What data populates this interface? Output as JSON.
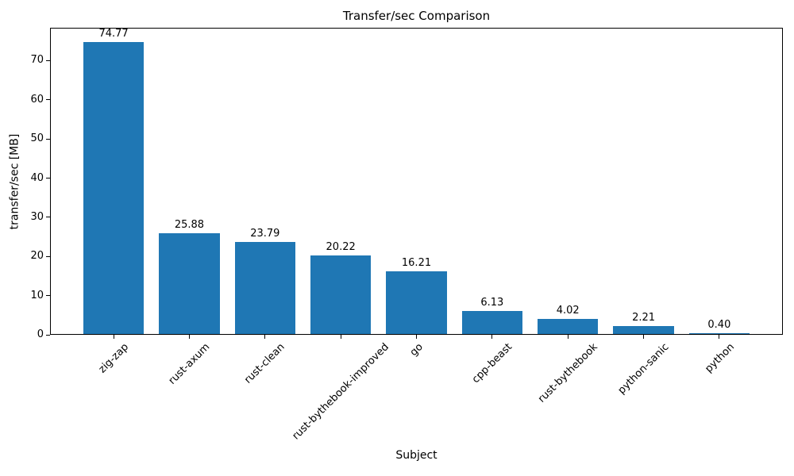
{
  "chart_data": {
    "type": "bar",
    "title": "Transfer/sec Comparison",
    "xlabel": "Subject",
    "ylabel": "transfer/sec [MB]",
    "categories": [
      "zig-zap",
      "rust-axum",
      "rust-clean",
      "rust-bythebook-improved",
      "go",
      "cpp-beast",
      "rust-bythebook",
      "python-sanic",
      "python"
    ],
    "values": [
      74.77,
      25.88,
      23.79,
      20.22,
      16.21,
      6.13,
      4.02,
      2.21,
      0.4
    ],
    "value_labels": [
      "74.77",
      "25.88",
      "23.79",
      "20.22",
      "16.21",
      "6.13",
      "4.02",
      "2.21",
      "0.40"
    ],
    "ylim": [
      0,
      78.4
    ],
    "yticks": [
      0,
      10,
      20,
      30,
      40,
      50,
      60,
      70
    ],
    "bar_color": "#1f77b4",
    "axis_color": "#000000",
    "text_color": "#000000",
    "grid": false,
    "legend": "none",
    "tick_label_rotation": 45
  }
}
